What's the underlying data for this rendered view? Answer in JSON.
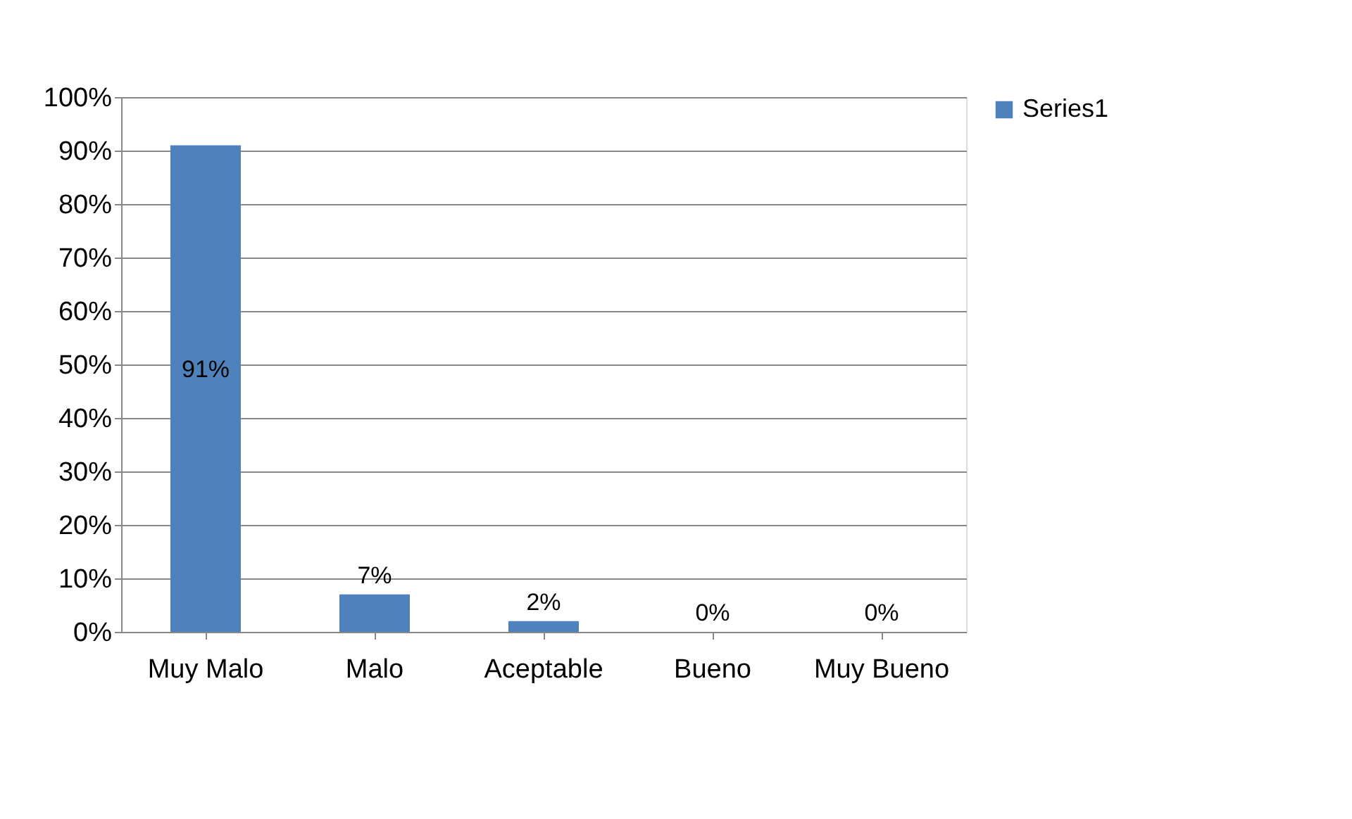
{
  "chart_data": {
    "type": "bar",
    "categories": [
      "Muy Malo",
      "Malo",
      "Aceptable",
      "Bueno",
      "Muy Bueno"
    ],
    "series": [
      {
        "name": "Series1",
        "color": "#4f81bd",
        "values": [
          91,
          7,
          2,
          0,
          0
        ],
        "value_labels": [
          "91%",
          "7%",
          "2%",
          "0%",
          "0%"
        ]
      }
    ],
    "ylim": [
      0,
      100
    ],
    "yticks": [
      {
        "value": 0,
        "label": "0%"
      },
      {
        "value": 10,
        "label": "10%"
      },
      {
        "value": 20,
        "label": "20%"
      },
      {
        "value": 30,
        "label": "30%"
      },
      {
        "value": 40,
        "label": "40%"
      },
      {
        "value": 50,
        "label": "50%"
      },
      {
        "value": 60,
        "label": "60%"
      },
      {
        "value": 70,
        "label": "70%"
      },
      {
        "value": 80,
        "label": "80%"
      },
      {
        "value": 90,
        "label": "90%"
      },
      {
        "value": 100,
        "label": "100%"
      }
    ],
    "grid": "y",
    "legend": "right"
  }
}
